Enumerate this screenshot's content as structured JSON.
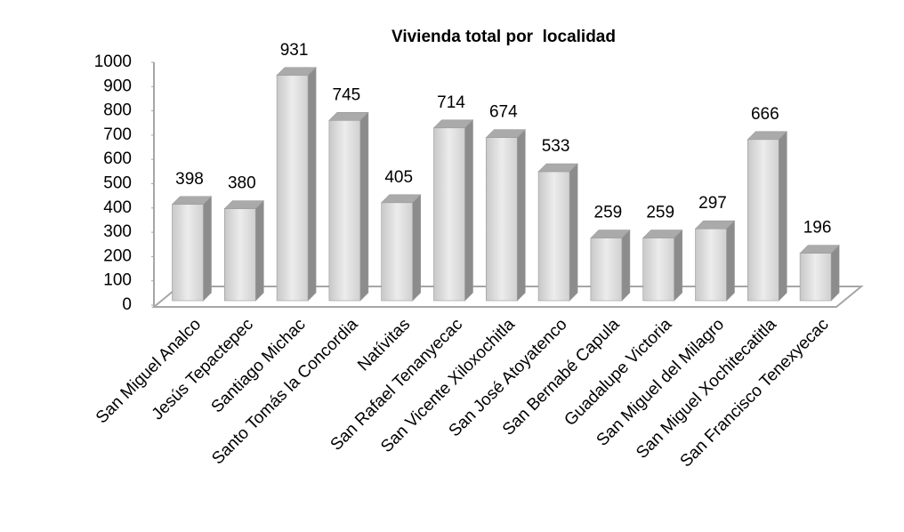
{
  "chart_data": {
    "type": "bar3d",
    "title": "Vivienda total por  localidad",
    "categories": [
      "San Miguel Analco",
      "Jesús Tepactepec",
      "Santiago Michac",
      "Santo Tomás la Concordia",
      "Natívitas",
      "San Rafael Tenanyecac",
      "San Vicente Xiloxochitla",
      "San José Atoyatenco",
      "San Bernabé Capula",
      "Guadalupe Victoria",
      "San Miguel del Milagro",
      "San Miguel Xochitecatitla",
      "San Francisco Tenexyecac"
    ],
    "values": [
      398,
      380,
      931,
      745,
      405,
      714,
      674,
      533,
      259,
      259,
      297,
      666,
      196
    ],
    "color": "#d9d9d9",
    "ylim": [
      0,
      1000
    ],
    "yticks": [
      0,
      100,
      200,
      300,
      400,
      500,
      600,
      700,
      800,
      900,
      1000
    ]
  }
}
